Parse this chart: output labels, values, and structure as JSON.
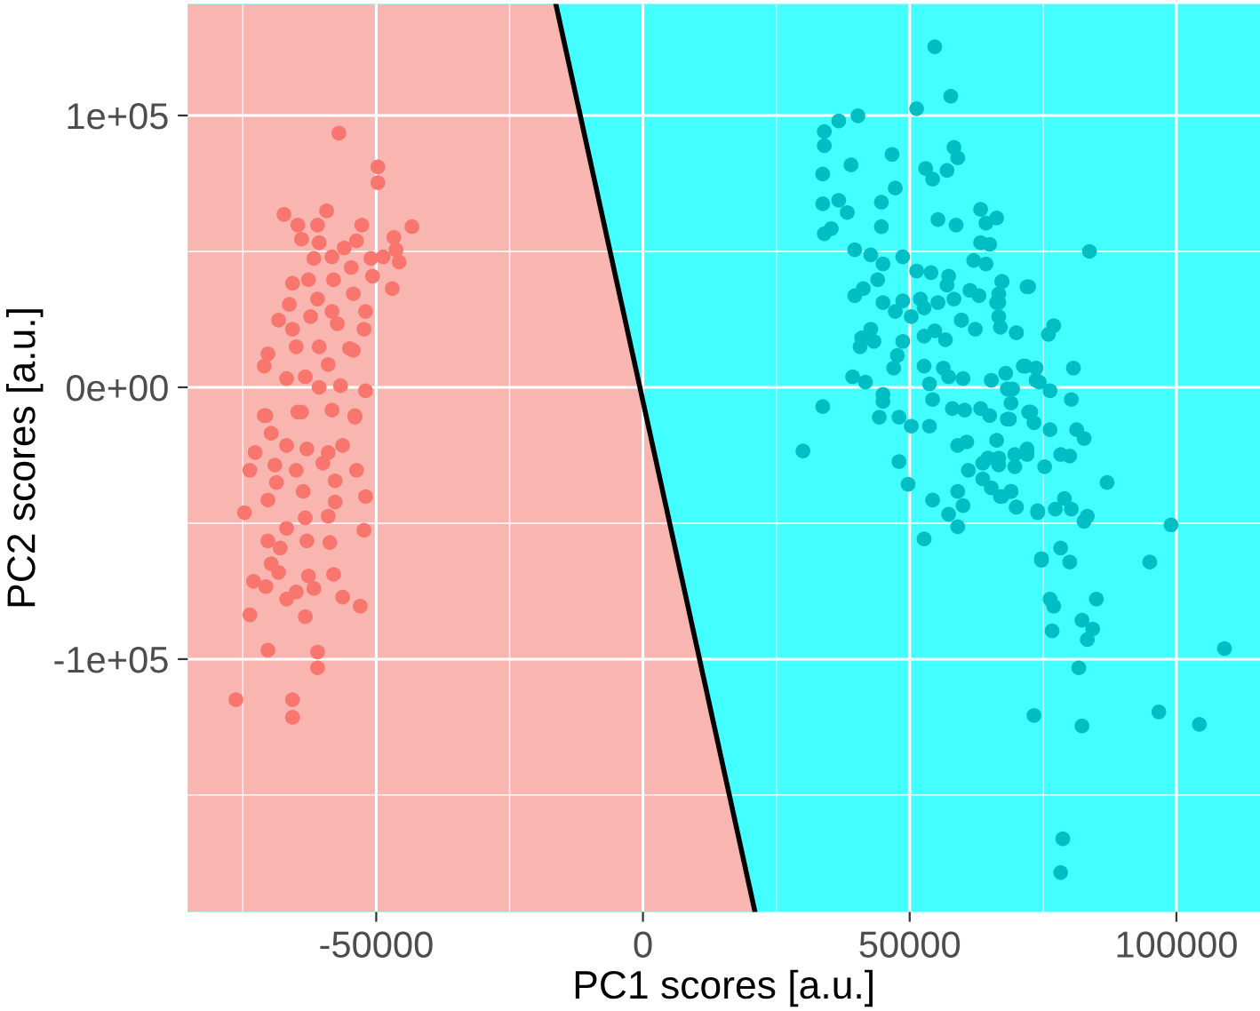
{
  "chart_data": {
    "type": "scatter",
    "xlabel": "PC1 scores [a.u.]",
    "ylabel": "PC2 scores [a.u.]",
    "xlim": [
      -85333,
      115667
    ],
    "ylim": [
      -193000,
      141000
    ],
    "xticks": [
      {
        "value": -75000,
        "label": null
      },
      -50000,
      {
        "value": -25000,
        "label": null
      },
      0,
      {
        "value": 25000,
        "label": null
      },
      50000,
      {
        "value": 75000,
        "label": null
      },
      100000
    ],
    "yticks": [
      {
        "value": -150000,
        "label": null
      },
      {
        "value": -100000,
        "label": "-1e+05"
      },
      {
        "value": -50000,
        "label": null
      },
      {
        "value": 0,
        "label": "0e+00"
      },
      {
        "value": 50000,
        "label": null
      },
      {
        "value": 100000,
        "label": "1e+05"
      }
    ],
    "grid": true,
    "marker": "circle",
    "series": [
      {
        "color": "#f8766d",
        "x": [
          -57000,
          -49700,
          -49700,
          -67300,
          -59300,
          -43300,
          -64700,
          -61000,
          -52700,
          -46700,
          -64000,
          -60700,
          -56000,
          -53700,
          -46300,
          -48700,
          -51000,
          -45700,
          -61700,
          -58300,
          -54700,
          -65700,
          -62700,
          -58000,
          -50700,
          -47000,
          -61000,
          -54300,
          -66300,
          -52000,
          -68300,
          -62300,
          -58300,
          -65700,
          -57300,
          -52300,
          -70300,
          -71000,
          -65000,
          -60700,
          -55000,
          -66800,
          -63300,
          -59000,
          -54300,
          -60700,
          -56700,
          -52000,
          -70700,
          -64700,
          -54000,
          -58300,
          -71000,
          -64000,
          -54000,
          -69700,
          -66800,
          -63000,
          -56300,
          -72700,
          -59000,
          -73700,
          -69000,
          -65000,
          -60000,
          -53700,
          -68700,
          -63700,
          -57700,
          -70300,
          -52000,
          -57700,
          -74700,
          -63300,
          -59000,
          -66800,
          -52300,
          -70300,
          -63000,
          -58700,
          -68000,
          -69700,
          -68300,
          -73000,
          -62700,
          -58000,
          -70700,
          -61700,
          -65000,
          -56300,
          -66800,
          -53000,
          -73700,
          -63300,
          -70300,
          -61000,
          -61000,
          -76300,
          -65700,
          -65700
        ],
        "values": [
          93500,
          81100,
          75300,
          63600,
          64900,
          59100,
          59700,
          59700,
          59700,
          55200,
          54500,
          53200,
          51300,
          53900,
          50600,
          48000,
          47400,
          46100,
          47400,
          48000,
          44100,
          38300,
          39600,
          39600,
          40900,
          36300,
          32500,
          34400,
          30500,
          27900,
          24700,
          26000,
          27900,
          21400,
          23400,
          21400,
          12300,
          7800,
          14900,
          14900,
          14300,
          3200,
          3900,
          8400,
          13600,
          0,
          600,
          -1300,
          -10400,
          -9100,
          -10400,
          -8400,
          -10400,
          -9100,
          -11000,
          -16900,
          -21400,
          -22700,
          -21400,
          -24000,
          -24000,
          -30500,
          -28600,
          -30500,
          -27900,
          -30500,
          -35000,
          -38300,
          -34400,
          -41500,
          -40200,
          -42200,
          -46100,
          -48000,
          -47400,
          -51900,
          -52600,
          -56500,
          -56500,
          -57100,
          -59100,
          -64900,
          -68100,
          -71400,
          -69400,
          -68800,
          -73300,
          -74000,
          -75300,
          -77200,
          -77900,
          -80500,
          -83700,
          -84400,
          -96700,
          -97400,
          -103200,
          -114900,
          -114900,
          -121400
        ]
      },
      {
        "color": "#00bfc4",
        "x": [
          54700,
          57700,
          51300,
          40300,
          36700,
          34000,
          34000,
          58300,
          46700,
          59000,
          39000,
          53000,
          57000,
          54300,
          33700,
          47300,
          36700,
          33700,
          44700,
          38300,
          63300,
          55300,
          58700,
          66300,
          64300,
          44700,
          35300,
          34000,
          63300,
          65000,
          39700,
          42700,
          48700,
          45000,
          62000,
          64300,
          44000,
          51300,
          54000,
          57300,
          67300,
          72000,
          41300,
          39700,
          61300,
          57000,
          66700,
          63000,
          45000,
          48700,
          52000,
          55300,
          58300,
          47300,
          52700,
          66300,
          50300,
          66700,
          59700,
          67000,
          42700,
          59700,
          62300,
          70000,
          54700,
          52700,
          41000,
          56700,
          43300,
          40700,
          48700,
          47700,
          47000,
          52700,
          56300,
          39300,
          41700,
          53700,
          57300,
          60000,
          65300,
          68000,
          71700,
          73700,
          68300,
          74300,
          33700,
          45000,
          45000,
          54300,
          58000,
          60300,
          63300,
          65000,
          44300,
          68300,
          72300,
          50300,
          30000,
          48000,
          53700,
          54300,
          48000,
          49700,
          59000,
          60000,
          66300,
          59000,
          60700,
          63700,
          64700,
          66700,
          66700,
          69700,
          72000,
          61000,
          63700,
          65300,
          67000,
          69000,
          70000,
          74000,
          57300,
          59000,
          52700,
          74700,
          83700,
          67300,
          72300,
          66700,
          77000,
          76000,
          70000,
          71300,
          80700,
          73700,
          76300,
          69300,
          80300,
          69000,
          68700,
          72700,
          73300,
          76300,
          81300,
          82700,
          72000,
          78300,
          80000,
          75300,
          69700,
          87000,
          67300,
          69000,
          70000,
          74000,
          77300,
          79000,
          80300,
          82700,
          83300,
          99000,
          78300,
          74700,
          80000,
          95000,
          76300,
          77000,
          85000,
          82300,
          84300,
          76700,
          83300,
          109000,
          81700,
          73300,
          96700,
          104300,
          82300,
          78700,
          78300
        ],
        "values": [
          125300,
          107100,
          102500,
          99900,
          98000,
          94100,
          88900,
          88300,
          85700,
          84400,
          81800,
          80500,
          79800,
          76600,
          78500,
          73300,
          68800,
          67500,
          68100,
          64300,
          65500,
          61700,
          59700,
          62300,
          60400,
          59100,
          58400,
          56500,
          53200,
          52600,
          50600,
          48700,
          48000,
          45400,
          46700,
          45400,
          39600,
          42800,
          42200,
          40900,
          38900,
          37000,
          36300,
          33700,
          35700,
          37600,
          34400,
          33700,
          31200,
          31800,
          32500,
          31200,
          32500,
          27900,
          29200,
          31200,
          26000,
          26000,
          24700,
          22100,
          21400,
          24700,
          21400,
          20100,
          20800,
          18800,
          18200,
          17500,
          16900,
          14900,
          16900,
          11700,
          7100,
          7800,
          7100,
          3900,
          1900,
          1300,
          3900,
          3200,
          2600,
          5200,
          7800,
          7100,
          -600,
          1900,
          -7100,
          -2600,
          -5200,
          -4500,
          -7800,
          -8400,
          -7800,
          -10400,
          -11000,
          -11700,
          -9100,
          -14300,
          -23400,
          -11000,
          -14300,
          -41500,
          -27300,
          -35700,
          -38300,
          -43500,
          -19500,
          -21400,
          -20100,
          -27900,
          -26000,
          -28600,
          -26000,
          -24700,
          -22700,
          -30500,
          -33700,
          -37000,
          -40200,
          -38300,
          -44100,
          -45400,
          -46700,
          -51300,
          -55800,
          -63000,
          50000,
          38900,
          37000,
          31200,
          22700,
          19500,
          20100,
          7800,
          7100,
          2600,
          -1300,
          -600,
          -4500,
          -5800,
          -11700,
          -9100,
          -13000,
          -15600,
          -15600,
          -18800,
          -24700,
          -24700,
          -25300,
          -29200,
          -29200,
          -35000,
          -40200,
          -38300,
          -44100,
          -46100,
          -44800,
          -40900,
          -44800,
          -49300,
          -47400,
          -50600,
          -59100,
          -63600,
          -64300,
          -64300,
          -77900,
          -80500,
          -77900,
          -85700,
          -88900,
          -89600,
          -92800,
          -96100,
          -103200,
          -120700,
          -119400,
          -124000,
          -124600,
          -166100,
          -178500
        ]
      },
      {
        "type": "line",
        "marker": "none",
        "color": "#000000",
        "x": [
          -16333,
          21000
        ],
        "values": [
          141000,
          -193000
        ]
      }
    ]
  }
}
